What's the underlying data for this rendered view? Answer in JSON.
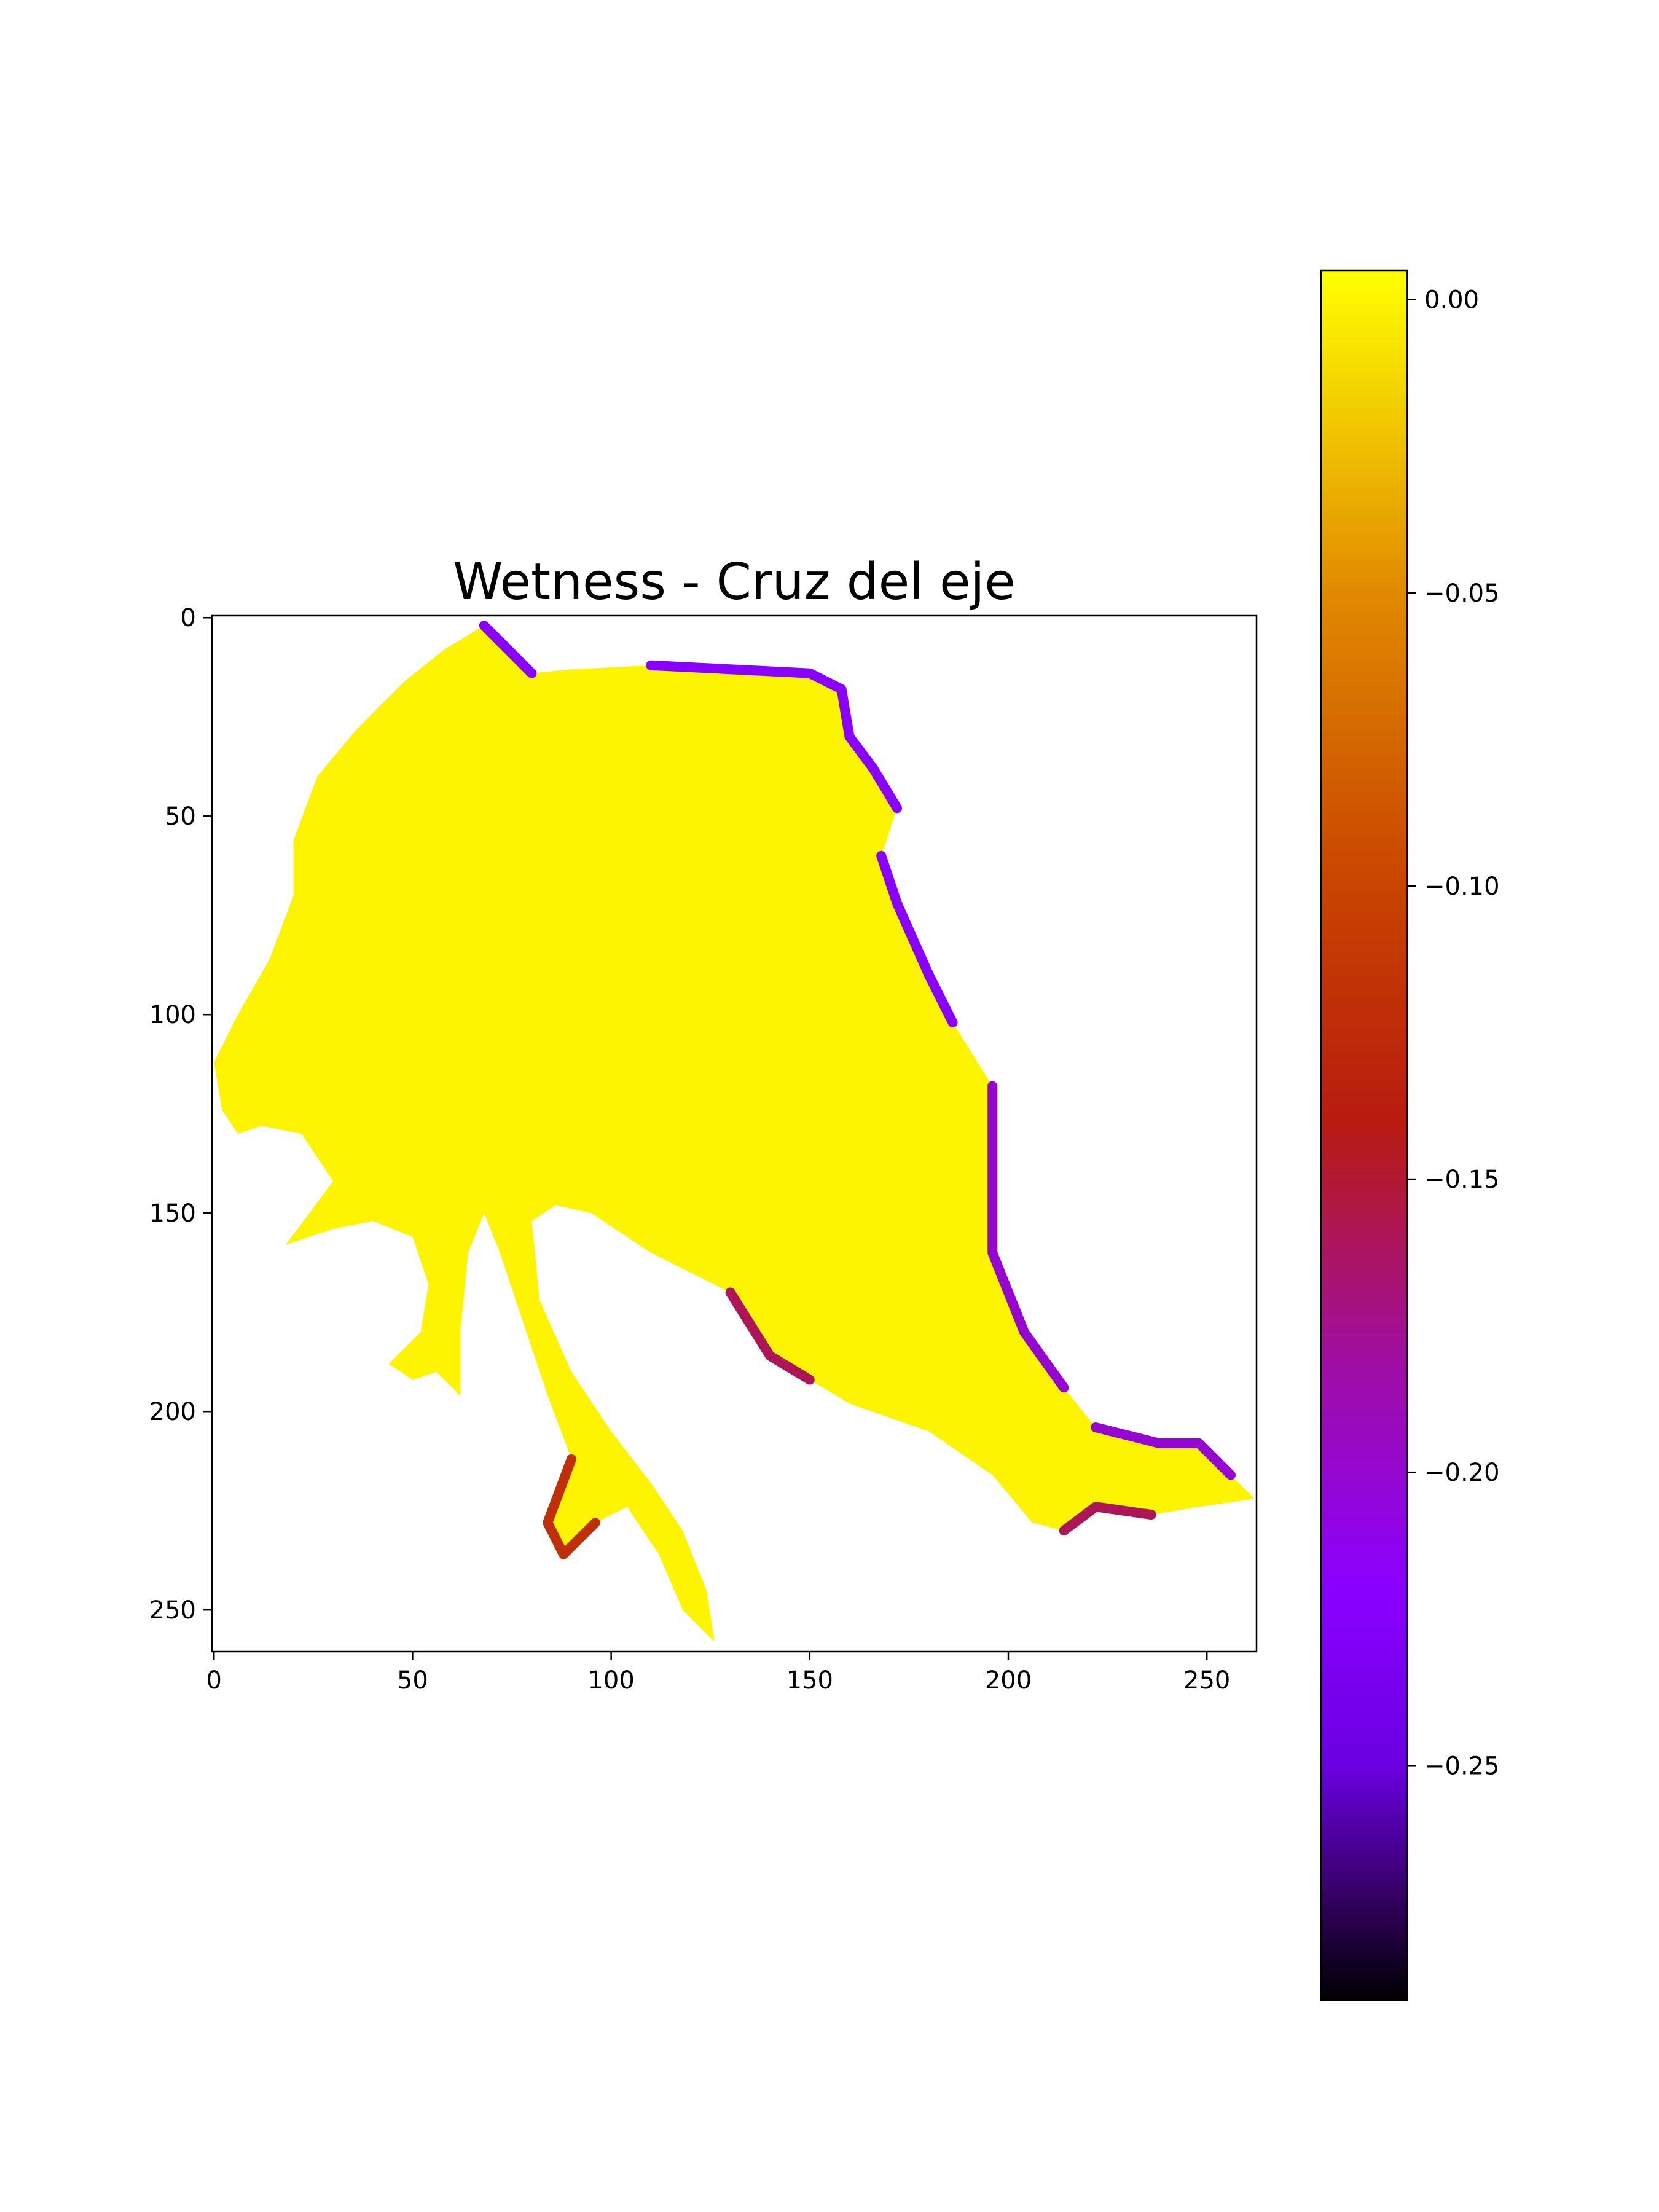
{
  "chart_data": {
    "type": "heatmap",
    "title": "Wetness - Cruz del eje",
    "xlabel": "",
    "ylabel": "",
    "x_axis": {
      "range": [
        -0.5,
        262.5
      ],
      "ticks": [
        0,
        50,
        100,
        150,
        200,
        250
      ]
    },
    "y_axis": {
      "range": [
        260.5,
        -0.5
      ],
      "inverted": true,
      "ticks": [
        0,
        50,
        100,
        150,
        200,
        250
      ]
    },
    "colormap": "gnuplot",
    "colorbar": {
      "vmin": -0.29,
      "vmax": 0.005,
      "ticks": [
        0.0,
        -0.05,
        -0.1,
        -0.15,
        -0.2,
        -0.25
      ],
      "tick_labels": [
        "0.00",
        "−0.05",
        "−0.10",
        "−0.15",
        "−0.20",
        "−0.25"
      ],
      "stops": [
        {
          "value": 0.005,
          "color": "#ffff00"
        },
        {
          "value": -0.05,
          "color": "#e08a00"
        },
        {
          "value": -0.1,
          "color": "#c84400"
        },
        {
          "value": -0.14,
          "color": "#b81c10"
        },
        {
          "value": -0.18,
          "color": "#a00fa0"
        },
        {
          "value": -0.22,
          "color": "#8a00ff"
        },
        {
          "value": -0.25,
          "color": "#6a00e0"
        },
        {
          "value": -0.27,
          "color": "#3a0070"
        },
        {
          "value": -0.29,
          "color": "#000000"
        }
      ]
    },
    "region": {
      "description_value": 0.0,
      "outline": [
        [
          68,
          2
        ],
        [
          74,
          8
        ],
        [
          80,
          14
        ],
        [
          90,
          13
        ],
        [
          110,
          12
        ],
        [
          130,
          13
        ],
        [
          150,
          14
        ],
        [
          158,
          18
        ],
        [
          160,
          30
        ],
        [
          166,
          38
        ],
        [
          172,
          48
        ],
        [
          168,
          60
        ],
        [
          172,
          72
        ],
        [
          180,
          90
        ],
        [
          186,
          102
        ],
        [
          196,
          118
        ],
        [
          196,
          138
        ],
        [
          196,
          160
        ],
        [
          204,
          180
        ],
        [
          214,
          194
        ],
        [
          222,
          204
        ],
        [
          238,
          208
        ],
        [
          248,
          208
        ],
        [
          256,
          216
        ],
        [
          262,
          222
        ],
        [
          248,
          224
        ],
        [
          236,
          226
        ],
        [
          222,
          224
        ],
        [
          214,
          230
        ],
        [
          206,
          228
        ],
        [
          196,
          216
        ],
        [
          180,
          205
        ],
        [
          160,
          198
        ],
        [
          150,
          192
        ],
        [
          140,
          186
        ],
        [
          130,
          170
        ],
        [
          110,
          160
        ],
        [
          95,
          150
        ],
        [
          86,
          148
        ],
        [
          80,
          152
        ],
        [
          82,
          172
        ],
        [
          90,
          190
        ],
        [
          100,
          205
        ],
        [
          110,
          218
        ],
        [
          118,
          230
        ],
        [
          124,
          245
        ],
        [
          126,
          258
        ],
        [
          118,
          250
        ],
        [
          112,
          236
        ],
        [
          104,
          224
        ],
        [
          96,
          228
        ],
        [
          88,
          236
        ],
        [
          84,
          228
        ],
        [
          90,
          212
        ],
        [
          84,
          196
        ],
        [
          78,
          178
        ],
        [
          72,
          160
        ],
        [
          68,
          150
        ],
        [
          64,
          160
        ],
        [
          62,
          180
        ],
        [
          62,
          196
        ],
        [
          56,
          190
        ],
        [
          50,
          192
        ],
        [
          44,
          188
        ],
        [
          52,
          180
        ],
        [
          54,
          168
        ],
        [
          50,
          156
        ],
        [
          40,
          152
        ],
        [
          30,
          154
        ],
        [
          18,
          158
        ],
        [
          24,
          150
        ],
        [
          30,
          142
        ],
        [
          22,
          130
        ],
        [
          12,
          128
        ],
        [
          6,
          130
        ],
        [
          2,
          124
        ],
        [
          0,
          112
        ],
        [
          6,
          100
        ],
        [
          14,
          86
        ],
        [
          20,
          70
        ],
        [
          20,
          56
        ],
        [
          26,
          40
        ],
        [
          36,
          28
        ],
        [
          48,
          16
        ],
        [
          58,
          8
        ]
      ],
      "low_wetness_edges": [
        {
          "value": -0.22,
          "points": [
            [
              110,
              12
            ],
            [
              130,
              13
            ],
            [
              150,
              14
            ],
            [
              158,
              18
            ],
            [
              160,
              30
            ],
            [
              166,
              38
            ],
            [
              172,
              48
            ]
          ]
        },
        {
          "value": -0.22,
          "points": [
            [
              168,
              60
            ],
            [
              172,
              72
            ],
            [
              180,
              90
            ],
            [
              186,
              102
            ]
          ]
        },
        {
          "value": -0.2,
          "points": [
            [
              196,
              118
            ],
            [
              196,
              138
            ],
            [
              196,
              160
            ],
            [
              204,
              180
            ],
            [
              214,
              194
            ]
          ]
        },
        {
          "value": -0.2,
          "points": [
            [
              222,
              204
            ],
            [
              238,
              208
            ],
            [
              248,
              208
            ],
            [
              256,
              216
            ]
          ]
        },
        {
          "value": -0.16,
          "points": [
            [
              236,
              226
            ],
            [
              222,
              224
            ],
            [
              214,
              230
            ]
          ]
        },
        {
          "value": -0.22,
          "points": [
            [
              68,
              2
            ],
            [
              74,
              8
            ],
            [
              80,
              14
            ]
          ]
        },
        {
          "value": -0.16,
          "points": [
            [
              130,
              170
            ],
            [
              140,
              186
            ],
            [
              150,
              192
            ]
          ]
        },
        {
          "value": -0.12,
          "points": [
            [
              96,
              228
            ],
            [
              88,
              236
            ],
            [
              84,
              228
            ],
            [
              90,
              212
            ]
          ]
        }
      ]
    }
  }
}
